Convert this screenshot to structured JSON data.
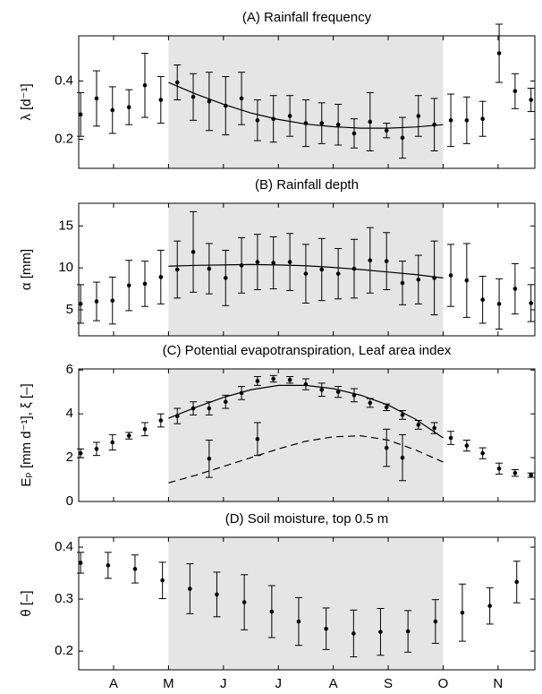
{
  "chart_data": [
    {
      "type": "errorbar",
      "title": "(A) Rainfall frequency",
      "ylabel": "λ [d⁻¹]",
      "xlim": [
        3.365,
        11.67
      ],
      "xticks": [
        4,
        5,
        6,
        7,
        8,
        9,
        10,
        11
      ],
      "ylim": [
        0.1,
        0.555
      ],
      "yticks": [
        0.2,
        0.4
      ],
      "shade": [
        5,
        10
      ],
      "color": "#000000",
      "shade_color": "#e5e5e5",
      "series": [
        {
          "x": [
            3.4,
            3.69,
            3.98,
            4.28,
            4.57,
            4.86,
            5.16,
            5.45,
            5.74,
            6.04,
            6.33,
            6.62,
            6.91,
            7.21,
            7.5,
            7.79,
            8.09,
            8.38,
            8.67,
            8.97,
            9.26,
            9.55,
            9.84,
            10.14,
            10.43,
            10.72,
            11.02,
            11.31,
            11.6
          ],
          "values": [
            0.285,
            0.34,
            0.3,
            0.31,
            0.385,
            0.335,
            0.395,
            0.345,
            0.33,
            0.315,
            0.34,
            0.265,
            0.27,
            0.28,
            0.255,
            0.255,
            0.25,
            0.22,
            0.26,
            0.23,
            0.205,
            0.28,
            0.25,
            0.265,
            0.265,
            0.27,
            0.495,
            0.365,
            0.335
          ],
          "errors": [
            0.075,
            0.095,
            0.08,
            0.06,
            0.11,
            0.08,
            0.06,
            0.08,
            0.1,
            0.1,
            0.09,
            0.07,
            0.08,
            0.07,
            0.08,
            0.07,
            0.07,
            0.05,
            0.1,
            0.025,
            0.07,
            0.07,
            0.09,
            0.09,
            0.08,
            0.06,
            0.1,
            0.06,
            0.04
          ]
        }
      ],
      "fits": [
        {
          "x": [
            5,
            5.5,
            6,
            6.5,
            7,
            7.5,
            8,
            8.5,
            9,
            9.5,
            10
          ],
          "values": [
            0.395,
            0.355,
            0.32,
            0.29,
            0.268,
            0.252,
            0.243,
            0.238,
            0.238,
            0.242,
            0.25
          ],
          "dashed": false
        }
      ]
    },
    {
      "type": "errorbar",
      "title": "(B) Rainfall depth",
      "ylabel": "α [mm]",
      "xlim": [
        3.365,
        11.67
      ],
      "xticks": [
        4,
        5,
        6,
        7,
        8,
        9,
        10,
        11
      ],
      "ylim": [
        1.9,
        17.7
      ],
      "yticks": [
        5,
        10,
        15
      ],
      "shade": [
        5,
        10
      ],
      "color": "#000000",
      "shade_color": "#e5e5e5",
      "series": [
        {
          "x": [
            3.4,
            3.69,
            3.98,
            4.28,
            4.57,
            4.86,
            5.16,
            5.45,
            5.74,
            6.04,
            6.33,
            6.62,
            6.91,
            7.21,
            7.5,
            7.79,
            8.09,
            8.38,
            8.67,
            8.97,
            9.26,
            9.55,
            9.84,
            10.14,
            10.43,
            10.72,
            11.02,
            11.31,
            11.6
          ],
          "values": [
            5.7,
            6.0,
            6.1,
            7.9,
            8.1,
            8.9,
            9.8,
            11.9,
            9.9,
            8.8,
            10.3,
            10.7,
            10.6,
            10.7,
            9.3,
            9.8,
            9.3,
            9.9,
            10.9,
            10.8,
            8.2,
            8.6,
            8.8,
            9.1,
            8.5,
            6.2,
            5.7,
            7.5,
            5.8
          ],
          "errors": [
            2.3,
            2.3,
            2.8,
            3.0,
            2.7,
            3.2,
            3.4,
            4.8,
            3.0,
            3.3,
            3.3,
            3.3,
            3.1,
            3.4,
            3.5,
            3.7,
            3.0,
            3.5,
            3.9,
            3.4,
            2.6,
            2.9,
            4.4,
            3.7,
            4.4,
            2.8,
            3.0,
            3.0,
            2.2
          ]
        }
      ],
      "fits": [
        {
          "x": [
            5,
            5.5,
            6,
            6.5,
            7,
            7.5,
            8,
            8.5,
            9,
            9.5,
            10
          ],
          "values": [
            10.2,
            10.3,
            10.35,
            10.4,
            10.35,
            10.25,
            10.05,
            9.8,
            9.5,
            9.2,
            8.8
          ],
          "dashed": false
        }
      ]
    },
    {
      "type": "errorbar",
      "title": "(C) Potential evapotranspiration, Leaf area index",
      "ylabel": "Eₚ [mm d⁻¹], ξ [–]",
      "xlim": [
        3.365,
        11.67
      ],
      "xticks": [
        4,
        5,
        6,
        7,
        8,
        9,
        10,
        11
      ],
      "ylim": [
        0,
        6.05
      ],
      "yticks": [
        0,
        2,
        4,
        6
      ],
      "shade": [
        5,
        10
      ],
      "color": "#000000",
      "shade_color": "#e5e5e5",
      "series": [
        {
          "x": [
            3.4,
            3.69,
            3.98,
            4.28,
            4.57,
            4.86,
            5.16,
            5.45,
            5.74,
            6.04,
            6.33,
            6.62,
            6.91,
            7.21,
            7.5,
            7.79,
            8.09,
            8.38,
            8.67,
            8.97,
            9.26,
            9.55,
            9.84,
            10.14,
            10.43,
            10.72,
            11.02,
            11.31,
            11.6
          ],
          "values": [
            2.2,
            2.4,
            2.7,
            3.0,
            3.3,
            3.7,
            3.9,
            4.25,
            4.25,
            4.55,
            4.95,
            5.5,
            5.6,
            5.55,
            5.35,
            5.1,
            5.0,
            4.85,
            4.5,
            4.3,
            3.95,
            3.5,
            3.35,
            2.9,
            2.55,
            2.2,
            1.5,
            1.3,
            1.2
          ],
          "errors": [
            0.2,
            0.3,
            0.35,
            0.15,
            0.3,
            0.3,
            0.35,
            0.3,
            0.3,
            0.3,
            0.3,
            0.2,
            0.15,
            0.15,
            0.25,
            0.3,
            0.25,
            0.3,
            0.2,
            0.15,
            0.2,
            0.2,
            0.25,
            0.3,
            0.25,
            0.25,
            0.25,
            0.15,
            0.1
          ]
        },
        {
          "x": [
            5.74,
            6.62,
            8.97,
            9.26
          ],
          "values": [
            1.95,
            2.85,
            2.45,
            2.0
          ],
          "errors": [
            0.85,
            0.75,
            0.85,
            1.05
          ]
        }
      ],
      "fits": [
        {
          "x": [
            5,
            5.5,
            6,
            6.5,
            7,
            7.5,
            8,
            8.5,
            9,
            9.5,
            10
          ],
          "values": [
            3.8,
            4.3,
            4.75,
            5.1,
            5.3,
            5.3,
            5.15,
            4.85,
            4.4,
            3.75,
            2.9
          ],
          "dashed": false
        },
        {
          "x": [
            5,
            5.5,
            6,
            6.5,
            7,
            7.5,
            8,
            8.5,
            9,
            9.5,
            10
          ],
          "values": [
            0.85,
            1.2,
            1.6,
            2.0,
            2.4,
            2.75,
            2.95,
            3.0,
            2.8,
            2.35,
            1.8
          ],
          "dashed": true
        }
      ]
    },
    {
      "type": "errorbar",
      "title": "(D) Soil moisture, top 0.5 m",
      "ylabel": "θ [–]",
      "xlim": [
        3.365,
        11.67
      ],
      "xticks": [
        {
          "value": 4,
          "label": "A"
        },
        {
          "value": 5,
          "label": "M"
        },
        {
          "value": 6,
          "label": "J"
        },
        {
          "value": 7,
          "label": "J"
        },
        {
          "value": 8,
          "label": "A"
        },
        {
          "value": 9,
          "label": "S"
        },
        {
          "value": 10,
          "label": "O"
        },
        {
          "value": 11,
          "label": "N"
        }
      ],
      "ylim": [
        0.164,
        0.419
      ],
      "yticks": [
        0.2,
        0.3,
        0.4
      ],
      "shade": [
        5,
        10
      ],
      "color": "#000000",
      "shade_color": "#e5e5e5",
      "series": [
        {
          "x": [
            3.4,
            3.9,
            4.39,
            4.89,
            5.39,
            5.88,
            6.38,
            6.88,
            7.37,
            7.87,
            8.37,
            8.86,
            9.36,
            9.86,
            10.35,
            10.85,
            11.34
          ],
          "values": [
            0.37,
            0.365,
            0.358,
            0.336,
            0.32,
            0.309,
            0.294,
            0.276,
            0.257,
            0.243,
            0.234,
            0.237,
            0.238,
            0.257,
            0.274,
            0.287,
            0.333
          ],
          "errors": [
            0.02,
            0.025,
            0.027,
            0.035,
            0.048,
            0.043,
            0.053,
            0.05,
            0.046,
            0.04,
            0.045,
            0.045,
            0.04,
            0.042,
            0.055,
            0.035,
            0.04
          ]
        }
      ],
      "fits": []
    }
  ]
}
